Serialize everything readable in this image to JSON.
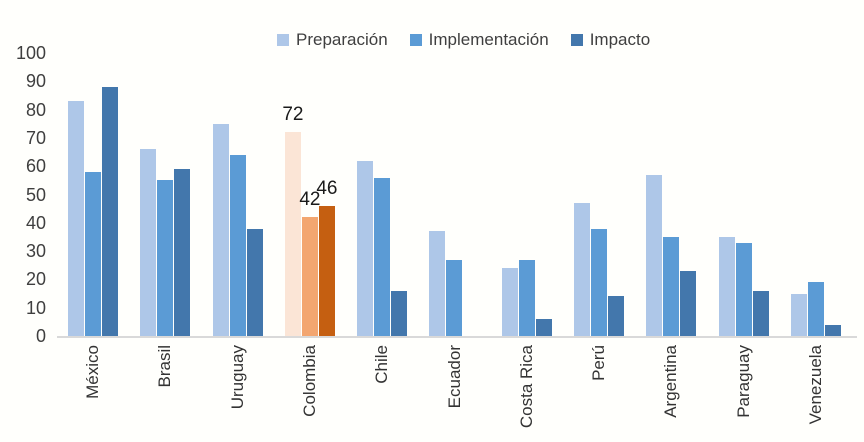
{
  "chart_data": {
    "type": "bar",
    "title": "",
    "categories": [
      "México",
      "Brasil",
      "Uruguay",
      "Colombia",
      "Chile",
      "Ecuador",
      "Costa Rica",
      "Perú",
      "Argentina",
      "Paraguay",
      "Venezuela"
    ],
    "series": [
      {
        "name": "Preparación",
        "values": [
          83,
          66,
          75,
          72,
          62,
          37,
          24,
          47,
          57,
          35,
          15
        ]
      },
      {
        "name": "Implementación",
        "values": [
          58,
          55,
          64,
          42,
          56,
          27,
          27,
          38,
          35,
          33,
          19
        ]
      },
      {
        "name": "Impacto",
        "values": [
          88,
          59,
          38,
          46,
          16,
          0,
          6,
          14,
          23,
          16,
          4
        ]
      }
    ],
    "highlight_category": "Colombia",
    "value_labels_shown_for": "Colombia",
    "value_labels": [
      "72",
      "42",
      "46"
    ],
    "xlabel": "",
    "ylabel": "",
    "ylim": [
      0,
      100
    ],
    "yticks": [
      0,
      10,
      20,
      30,
      40,
      50,
      60,
      70,
      80,
      90,
      100
    ],
    "grid": false,
    "legend_position": "top",
    "colors": {
      "series_default": [
        "#AEC7E8",
        "#5B9BD5",
        "#4377AC"
      ],
      "series_highlight": [
        "#FBE5D6",
        "#F3A670",
        "#C55F11"
      ],
      "axis_line": "#D9D9D9",
      "tick_text": "#3F3F3F",
      "value_label_text": "#1A1A1A",
      "background": "#FFFFFC"
    }
  },
  "legend": {
    "items": [
      {
        "label": "Preparación"
      },
      {
        "label": "Implementación"
      },
      {
        "label": "Impacto"
      }
    ]
  }
}
